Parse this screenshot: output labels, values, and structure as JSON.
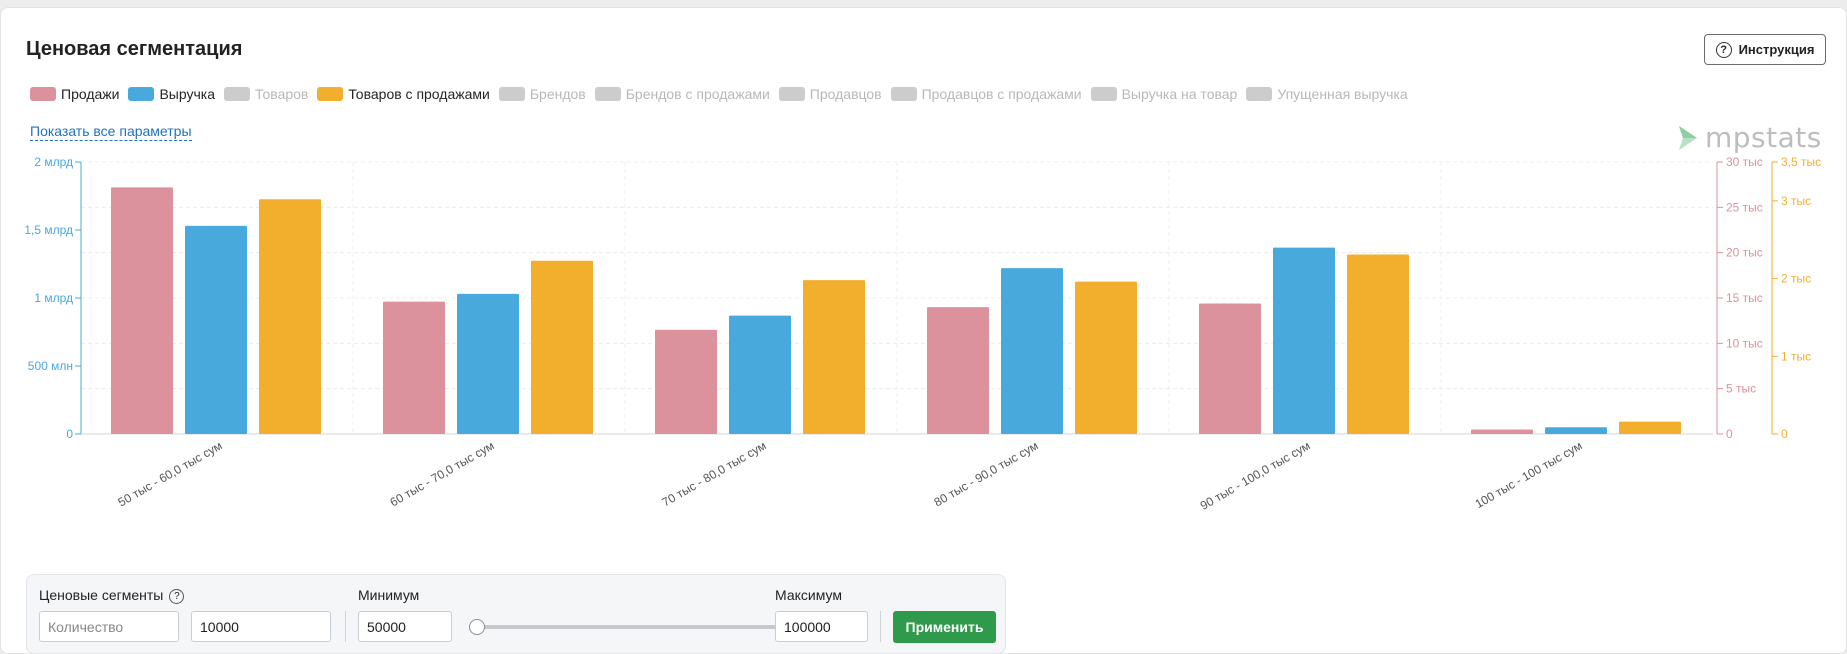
{
  "page": {
    "title": "Ценовая сегментация",
    "instruction_button": "Инструкция",
    "show_all_params": "Показать все параметры",
    "logo_text": "mpstats"
  },
  "legend": [
    {
      "label": "Продажи",
      "color": "#db929d",
      "active": true
    },
    {
      "label": "Выручка",
      "color": "#48a9dd",
      "active": true
    },
    {
      "label": "Товаров",
      "color": "#cccccc",
      "active": false
    },
    {
      "label": "Товаров с продажами",
      "color": "#f2af2e",
      "active": true
    },
    {
      "label": "Брендов",
      "color": "#cccccc",
      "active": false
    },
    {
      "label": "Брендов с продажами",
      "color": "#cccccc",
      "active": false
    },
    {
      "label": "Продавцов",
      "color": "#cccccc",
      "active": false
    },
    {
      "label": "Продавцов с продажами",
      "color": "#cccccc",
      "active": false
    },
    {
      "label": "Выручка на товар",
      "color": "#cccccc",
      "active": false
    },
    {
      "label": "Упущенная выручка",
      "color": "#cccccc",
      "active": false
    }
  ],
  "chart_data": {
    "type": "bar",
    "categories": [
      "50 тыс - 60,0 тыс сум",
      "60 тыс - 70,0 тыс сум",
      "70 тыс - 80,0 тыс сум",
      "80 тыс - 90,0 тыс сум",
      "90 тыс - 100,0 тыс сум",
      "100 тыс - 100 тыс сум"
    ],
    "series": [
      {
        "name": "Продажи",
        "axis": "right_inner",
        "color": "#db929d",
        "values": [
          27200,
          14600,
          11500,
          14000,
          14400,
          500
        ]
      },
      {
        "name": "Выручка",
        "axis": "left",
        "color": "#48a9dd",
        "values": [
          1530000000,
          1030000000,
          870000000,
          1220000000,
          1370000000,
          50000000
        ]
      },
      {
        "name": "Товаров с продажами",
        "axis": "right_outer",
        "color": "#f2af2e",
        "values": [
          3020,
          2230,
          1980,
          1960,
          2310,
          160
        ]
      }
    ],
    "axes": {
      "left": {
        "min": 0,
        "max": 2000000000,
        "color": "#48a9dd",
        "ticks": [
          {
            "v": 0,
            "label": "0"
          },
          {
            "v": 500000000,
            "label": "500 млн"
          },
          {
            "v": 1000000000,
            "label": "1 млрд"
          },
          {
            "v": 1500000000,
            "label": "1,5 млрд"
          },
          {
            "v": 2000000000,
            "label": "2 млрд"
          }
        ]
      },
      "right_inner": {
        "min": 0,
        "max": 30000,
        "color": "#db929d",
        "ticks": [
          {
            "v": 0,
            "label": "0"
          },
          {
            "v": 5000,
            "label": "5 тыс"
          },
          {
            "v": 10000,
            "label": "10 тыс"
          },
          {
            "v": 15000,
            "label": "15 тыс"
          },
          {
            "v": 20000,
            "label": "20 тыс"
          },
          {
            "v": 25000,
            "label": "25 тыс"
          },
          {
            "v": 30000,
            "label": "30 тыс"
          }
        ]
      },
      "right_outer": {
        "min": 0,
        "max": 3500,
        "color": "#f2af2e",
        "ticks": [
          {
            "v": 0,
            "label": "0"
          },
          {
            "v": 1000,
            "label": "1 тыс"
          },
          {
            "v": 2000,
            "label": "2 тыс"
          },
          {
            "v": 3000,
            "label": "3 тыс"
          },
          {
            "v": 3500,
            "label": "3,5 тыс"
          }
        ]
      }
    },
    "grid": true
  },
  "controls": {
    "segments_label": "Ценовые сегменты",
    "count_placeholder": "Количество",
    "count_value": "10000",
    "min_label": "Минимум",
    "min_value": "50000",
    "max_label": "Максимум",
    "max_value": "100000",
    "slider_position": 0,
    "apply_button": "Применить"
  }
}
